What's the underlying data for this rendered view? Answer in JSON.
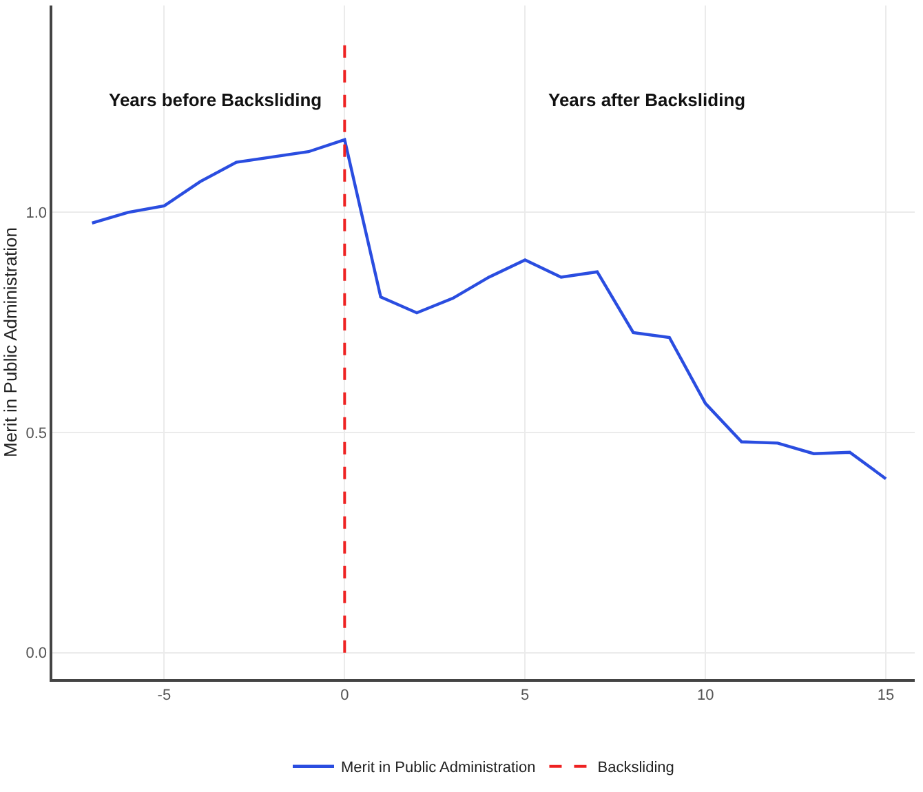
{
  "chart_data": {
    "type": "line",
    "ylabel": "Merit in Public Administration",
    "x": [
      -7,
      -6,
      -5,
      -4,
      -3,
      -2,
      -1,
      0,
      1,
      2,
      3,
      4,
      5,
      6,
      7,
      8,
      9,
      10,
      11,
      12,
      13,
      14,
      15
    ],
    "series": [
      {
        "name": "Merit in Public Administration",
        "color": "#2a4de0",
        "values": [
          0.976,
          1.0,
          1.015,
          1.07,
          1.114,
          1.126,
          1.138,
          1.165,
          0.808,
          0.772,
          0.805,
          0.853,
          0.892,
          0.853,
          0.865,
          0.727,
          0.716,
          0.566,
          0.479,
          0.476,
          0.452,
          0.455,
          0.395
        ]
      }
    ],
    "ref_lines": [
      {
        "axis": "x",
        "value": 0,
        "label": "Backsliding",
        "color": "#ee2222",
        "line_style": "dashed"
      }
    ],
    "annotations": [
      "Years before Backsliding",
      "Years after Backsliding"
    ],
    "xlim": [
      -8.1,
      15.8
    ],
    "xticks": [
      -5,
      0,
      5,
      10,
      15
    ],
    "ylim": [
      -0.06,
      1.47
    ],
    "yticks": [
      {
        "value": 0,
        "label": "0.0"
      },
      0.5,
      {
        "value": 1,
        "label": "1.0"
      }
    ],
    "grid": true,
    "legend": "bottom",
    "marker": "none",
    "line_style": "solid"
  }
}
